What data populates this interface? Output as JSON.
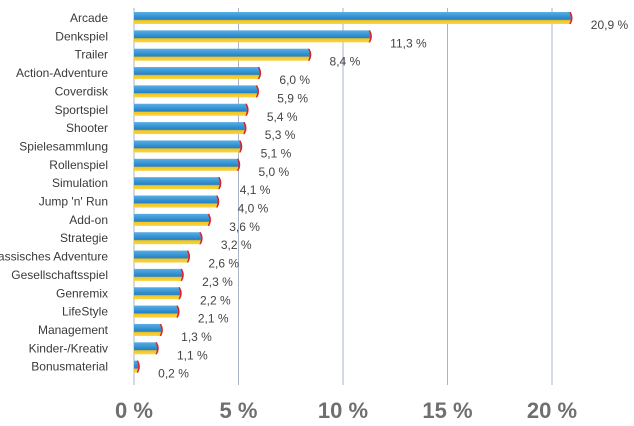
{
  "chart_data": {
    "type": "bar",
    "orientation": "horizontal",
    "categories": [
      "Arcade",
      "Denkspiel",
      "Trailer",
      "Action-Adventure",
      "Coverdisk",
      "Sportspiel",
      "Shooter",
      "Spielesammlung",
      "Rollenspiel",
      "Simulation",
      "Jump 'n' Run",
      "Add-on",
      "Strategie",
      "klassisches Adventure",
      "Gesellschaftsspiel",
      "Genremix",
      "LifeStyle",
      "Management",
      "Kinder-/Kreativ",
      "Bonusmaterial"
    ],
    "values": [
      20.9,
      11.3,
      8.4,
      6.0,
      5.9,
      5.4,
      5.3,
      5.1,
      5.0,
      4.1,
      4.0,
      3.6,
      3.2,
      2.6,
      2.3,
      2.2,
      2.1,
      1.3,
      1.1,
      0.2
    ],
    "value_labels": [
      "20,9 %",
      "11,3 %",
      "8,4 %",
      "6,0 %",
      "5,9 %",
      "5,4 %",
      "5,3 %",
      "5,1 %",
      "5,0 %",
      "4,1 %",
      "4,0 %",
      "3,6 %",
      "3,2 %",
      "2,6 %",
      "2,3 %",
      "2,2 %",
      "2,1 %",
      "1,3 %",
      "1,1 %",
      "0,2 %"
    ],
    "xlim": [
      0,
      22.5
    ],
    "xticks": [
      0,
      5,
      10,
      15,
      20
    ],
    "xtick_labels": [
      "0 %",
      "5 %",
      "10 %",
      "15 %",
      "20 %"
    ],
    "title": "",
    "xlabel": "",
    "ylabel": "",
    "grid": "vertical",
    "legend": "none",
    "colors": {
      "bar_top": "#2f8ed0",
      "bar_bottom": "#f3c61d",
      "bar_end": "#d8232a",
      "grid": "#a9b4c6"
    }
  }
}
